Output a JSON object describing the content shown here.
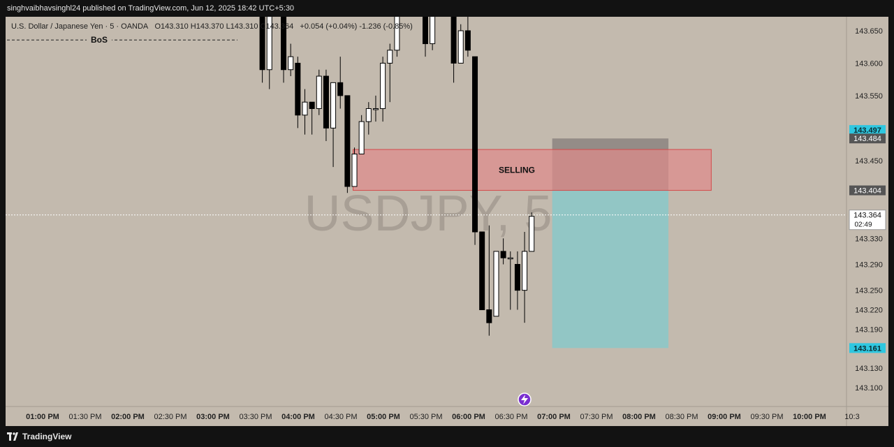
{
  "header": {
    "publish_text": "singhvaibhavsinghl24 published on TradingView.com, Jun 12, 2025 18:42 UTC+5:30"
  },
  "legend": {
    "symbol": "U.S. Dollar / Japanese Yen · 5 · OANDA",
    "ohlc": "O143.310  H143.370  L143.310  C143.364",
    "change": "+0.054 (+0.04%)  -1.236 (-0.85%)"
  },
  "watermark": "USDJPY, 5",
  "footer": {
    "brand": "TradingView"
  },
  "annotations": {
    "bos": "BoS",
    "zone_label": "SELLING",
    "countdown": "02:49"
  },
  "colors": {
    "background": "#c3baae",
    "bull_body": "#ffffff",
    "bear_body": "#000000",
    "zone_fill": "#e08a8a",
    "zone_border": "#d44a4a",
    "target_fill": "#8fc6c6",
    "stop_fill": "#8c8480",
    "badge_cyan": "#2ec7e0",
    "badge_gray": "#555555"
  },
  "chart_data": {
    "type": "candlestick",
    "symbol": "USDJPY",
    "interval": "5",
    "y_ticks": [
      "143.650",
      "143.600",
      "143.550",
      "143.450",
      "143.330",
      "143.290",
      "143.250",
      "143.220",
      "143.190",
      "143.130",
      "143.100"
    ],
    "ylim": [
      143.06,
      143.68
    ],
    "x_ticks": [
      "01:00 PM",
      "01:30 PM",
      "02:00 PM",
      "02:30 PM",
      "03:00 PM",
      "03:30 PM",
      "04:00 PM",
      "04:30 PM",
      "05:00 PM",
      "05:30 PM",
      "06:00 PM",
      "06:30 PM",
      "07:00 PM",
      "07:30 PM",
      "08:00 PM",
      "08:30 PM",
      "09:00 PM",
      "09:30 PM",
      "10:00 PM",
      "10:3"
    ],
    "price_badges": [
      {
        "label": "143.497",
        "value": 143.497,
        "style": "cyan"
      },
      {
        "label": "143.484",
        "value": 143.484,
        "style": "dark"
      },
      {
        "label": "143.404",
        "value": 143.404,
        "style": "dark"
      },
      {
        "label": "143.364",
        "value": 143.364,
        "style": "current"
      },
      {
        "label": "143.161",
        "value": 143.161,
        "style": "cyan"
      }
    ],
    "candles": [
      {
        "t": "03:35 PM",
        "o": 143.75,
        "h": 143.75,
        "l": 143.57,
        "c": 143.59
      },
      {
        "t": "03:40 PM",
        "o": 143.59,
        "h": 143.76,
        "l": 143.56,
        "c": 143.7
      },
      {
        "t": "03:50 PM",
        "o": 143.8,
        "h": 143.8,
        "l": 143.57,
        "c": 143.59
      },
      {
        "t": "03:55 PM",
        "o": 143.59,
        "h": 143.63,
        "l": 143.58,
        "c": 143.61
      },
      {
        "t": "04:00 PM",
        "o": 143.6,
        "h": 143.61,
        "l": 143.5,
        "c": 143.52
      },
      {
        "t": "04:05 PM",
        "o": 143.52,
        "h": 143.56,
        "l": 143.49,
        "c": 143.54
      },
      {
        "t": "04:10 PM",
        "o": 143.54,
        "h": 143.54,
        "l": 143.49,
        "c": 143.53
      },
      {
        "t": "04:15 PM",
        "o": 143.53,
        "h": 143.59,
        "l": 143.52,
        "c": 143.58
      },
      {
        "t": "04:20 PM",
        "o": 143.58,
        "h": 143.59,
        "l": 143.48,
        "c": 143.5
      },
      {
        "t": "04:25 PM",
        "o": 143.5,
        "h": 143.57,
        "l": 143.44,
        "c": 143.57
      },
      {
        "t": "04:30 PM",
        "o": 143.57,
        "h": 143.61,
        "l": 143.53,
        "c": 143.55
      },
      {
        "t": "04:35 PM",
        "o": 143.55,
        "h": 143.55,
        "l": 143.4,
        "c": 143.41
      },
      {
        "t": "04:40 PM",
        "o": 143.41,
        "h": 143.47,
        "l": 143.41,
        "c": 143.46
      },
      {
        "t": "04:45 PM",
        "o": 143.46,
        "h": 143.52,
        "l": 143.46,
        "c": 143.51
      },
      {
        "t": "04:50 PM",
        "o": 143.51,
        "h": 143.54,
        "l": 143.49,
        "c": 143.53
      },
      {
        "t": "04:55 PM",
        "o": 143.53,
        "h": 143.55,
        "l": 143.51,
        "c": 143.53
      },
      {
        "t": "05:00 PM",
        "o": 143.53,
        "h": 143.61,
        "l": 143.51,
        "c": 143.6
      },
      {
        "t": "05:05 PM",
        "o": 143.6,
        "h": 143.63,
        "l": 143.54,
        "c": 143.62
      },
      {
        "t": "05:10 PM",
        "o": 143.62,
        "h": 143.7,
        "l": 143.61,
        "c": 143.68
      },
      {
        "t": "05:30 PM",
        "o": 143.7,
        "h": 143.7,
        "l": 143.61,
        "c": 143.63
      },
      {
        "t": "05:35 PM",
        "o": 143.63,
        "h": 143.7,
        "l": 143.62,
        "c": 143.69
      },
      {
        "t": "05:50 PM",
        "o": 143.69,
        "h": 143.72,
        "l": 143.57,
        "c": 143.6
      },
      {
        "t": "05:55 PM",
        "o": 143.6,
        "h": 143.66,
        "l": 143.6,
        "c": 143.65
      },
      {
        "t": "06:00 PM",
        "o": 143.65,
        "h": 143.68,
        "l": 143.61,
        "c": 143.62
      },
      {
        "t": "06:05 PM",
        "o": 143.61,
        "h": 143.61,
        "l": 143.32,
        "c": 143.34
      },
      {
        "t": "06:10 PM",
        "o": 143.34,
        "h": 143.34,
        "l": 143.22,
        "c": 143.22
      },
      {
        "t": "06:15 PM",
        "o": 143.22,
        "h": 143.35,
        "l": 143.18,
        "c": 143.2
      },
      {
        "t": "06:20 PM",
        "o": 143.21,
        "h": 143.31,
        "l": 143.21,
        "c": 143.31
      },
      {
        "t": "06:25 PM",
        "o": 143.31,
        "h": 143.33,
        "l": 143.29,
        "c": 143.3
      },
      {
        "t": "06:30 PM",
        "o": 143.3,
        "h": 143.31,
        "l": 143.22,
        "c": 143.3
      },
      {
        "t": "06:35 PM",
        "o": 143.29,
        "h": 143.31,
        "l": 143.22,
        "c": 143.25
      },
      {
        "t": "06:40 PM",
        "o": 143.25,
        "h": 143.34,
        "l": 143.2,
        "c": 143.31
      },
      {
        "t": "06:45 PM",
        "o": 143.31,
        "h": 143.37,
        "l": 143.31,
        "c": 143.364
      }
    ],
    "zone": {
      "label": "SELLING",
      "from_time": "04:40 PM",
      "to_time": "08:30 PM",
      "top": 143.467,
      "bottom": 143.404
    },
    "position": {
      "entry": 143.404,
      "stop": 143.484,
      "target": 143.161,
      "from_time": "07:00 PM",
      "to_time": "08:20 PM"
    },
    "bos_level": 143.653,
    "current_price": 143.364
  }
}
